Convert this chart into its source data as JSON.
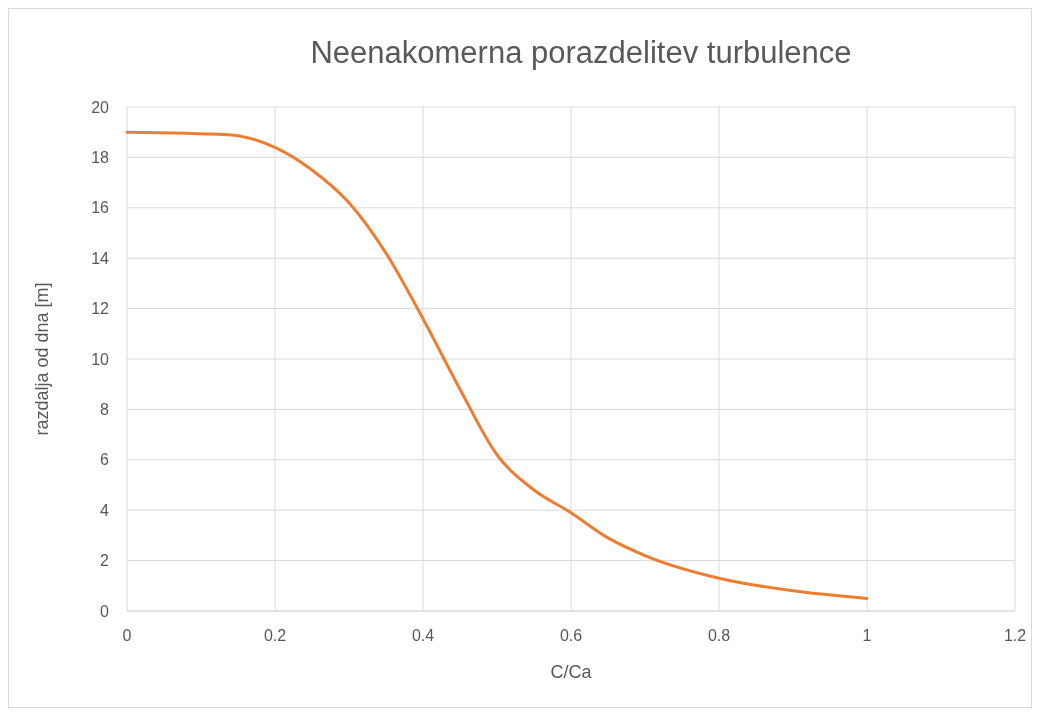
{
  "chart_data": {
    "type": "line",
    "title": "Neenakomerna porazdelitev turbulence",
    "xlabel": "C/Ca",
    "ylabel": "razdalja od dna [m]",
    "x": [
      0,
      0.136,
      0.2,
      0.25,
      0.3,
      0.35,
      0.4,
      0.45,
      0.5,
      0.55,
      0.6,
      0.65,
      0.7,
      0.8,
      0.9,
      1.0
    ],
    "series": [
      {
        "color": "#ed7d31",
        "values": [
          19,
          18.9,
          18.4,
          17.5,
          16.2,
          14.2,
          11.6,
          8.8,
          6.2,
          4.8,
          3.9,
          2.9,
          2.2,
          1.3,
          0.8,
          0.5
        ]
      }
    ],
    "xlim": [
      0,
      1.2
    ],
    "xticks": [
      0,
      0.2,
      0.4,
      0.6,
      0.8,
      1,
      1.2
    ],
    "ylim": [
      0,
      20
    ],
    "yticks": [
      0,
      2,
      4,
      6,
      8,
      10,
      12,
      14,
      16,
      18,
      20
    ],
    "grid": true,
    "marker": "none",
    "line_style": "solid"
  }
}
